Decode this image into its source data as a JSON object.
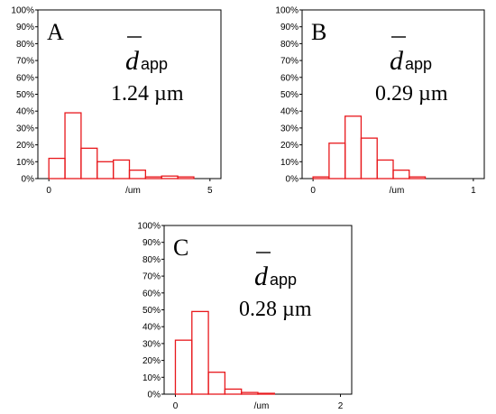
{
  "chart_data": [
    {
      "type": "bar",
      "panel_label": "A",
      "stat_symbol": "d",
      "stat_subscript": "app",
      "stat_value": "1.24 µm",
      "xlabel": "/um",
      "x_ticks": [
        "0",
        "5"
      ],
      "xlim": [
        0,
        5
      ],
      "ylim": [
        0,
        100
      ],
      "y_ticks": [
        "0%",
        "10%",
        "20%",
        "30%",
        "40%",
        "50%",
        "60%",
        "70%",
        "80%",
        "90%",
        "100%"
      ],
      "bin_width": 0.5,
      "bin_starts": [
        0,
        0.5,
        1.0,
        1.5,
        2.0,
        2.5,
        3.0,
        3.5,
        4.0
      ],
      "values": [
        12,
        39,
        18,
        10,
        11,
        5,
        1,
        1.5,
        1
      ],
      "bar_color": "#e8181c"
    },
    {
      "type": "bar",
      "panel_label": "B",
      "stat_symbol": "d",
      "stat_subscript": "app",
      "stat_value": "0.29 µm",
      "xlabel": "/um",
      "x_ticks": [
        "0",
        "1"
      ],
      "xlim": [
        0,
        1
      ],
      "ylim": [
        0,
        100
      ],
      "y_ticks": [
        "0%",
        "10%",
        "20%",
        "30%",
        "40%",
        "50%",
        "60%",
        "70%",
        "80%",
        "90%",
        "100%"
      ],
      "bin_width": 0.1,
      "bin_starts": [
        0,
        0.1,
        0.2,
        0.3,
        0.4,
        0.5,
        0.6
      ],
      "values": [
        1,
        21,
        37,
        24,
        11,
        5,
        1
      ],
      "bar_color": "#e8181c"
    },
    {
      "type": "bar",
      "panel_label": "C",
      "stat_symbol": "d",
      "stat_subscript": "app",
      "stat_value": "0.28 µm",
      "xlabel": "/um",
      "x_ticks": [
        "0",
        "2"
      ],
      "xlim": [
        0,
        2
      ],
      "ylim": [
        0,
        100
      ],
      "y_ticks": [
        "0%",
        "10%",
        "20%",
        "30%",
        "40%",
        "50%",
        "60%",
        "70%",
        "80%",
        "90%",
        "100%"
      ],
      "bin_width": 0.2,
      "bin_starts": [
        0,
        0.2,
        0.4,
        0.6,
        0.8,
        1.0
      ],
      "values": [
        32,
        49,
        13,
        3,
        1,
        0.5
      ],
      "bar_color": "#e8181c"
    }
  ]
}
